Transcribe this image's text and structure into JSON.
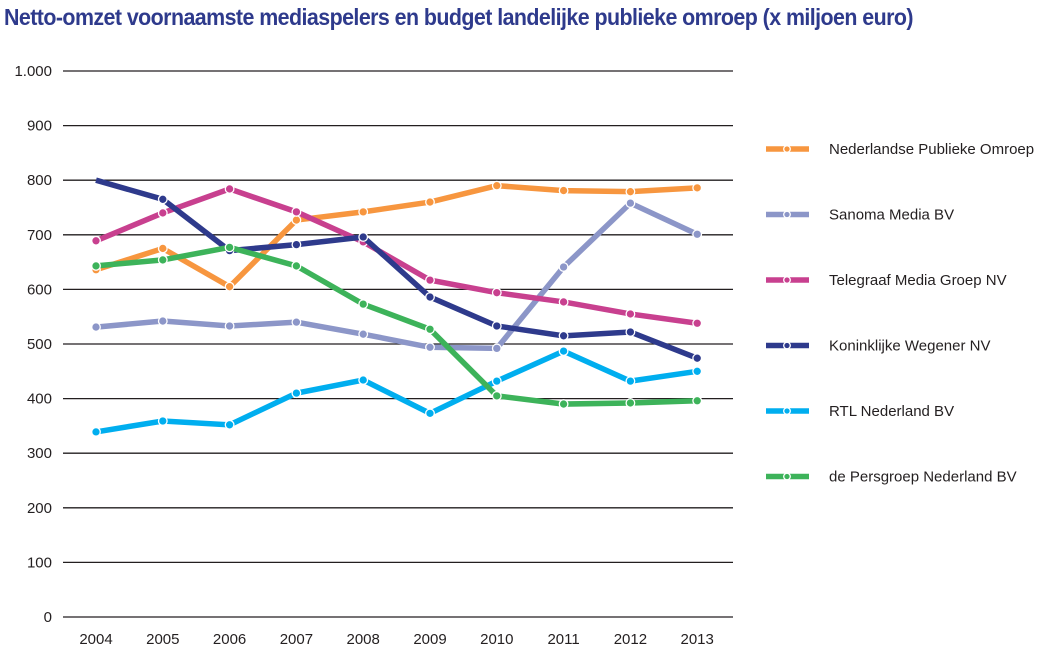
{
  "chart_data": {
    "type": "line",
    "title": "Netto-omzet voornaamste mediaspelers en budget landelijke publieke omroep (x miljoen euro)",
    "xlabel": "",
    "ylabel": "",
    "x": [
      "2004",
      "2005",
      "2006",
      "2007",
      "2008",
      "2009",
      "2010",
      "2011",
      "2012",
      "2013"
    ],
    "ylim": [
      0,
      1000
    ],
    "yticks": [
      0,
      100,
      200,
      300,
      400,
      500,
      600,
      700,
      800,
      900,
      1000
    ],
    "ytick_labels": [
      "0",
      "100",
      "200",
      "300",
      "400",
      "500",
      "600",
      "700",
      "800",
      "900",
      "1.000"
    ],
    "grid": true,
    "legend_position": "right",
    "series": [
      {
        "name": "Nederlandse Publieke Omroep",
        "color": "#F7963F",
        "values": [
          636,
          675,
          605,
          727,
          742,
          760,
          790,
          781,
          779,
          786
        ]
      },
      {
        "name": "Sanoma Media BV",
        "color": "#8C96C8",
        "values": [
          531,
          542,
          533,
          540,
          518,
          494,
          492,
          641,
          758,
          701
        ]
      },
      {
        "name": "Telegraaf Media Groep NV",
        "color": "#C8408F",
        "values": [
          689,
          740,
          784,
          742,
          687,
          617,
          594,
          577,
          555,
          538
        ]
      },
      {
        "name": "Koninklijke Wegener NV",
        "color": "#2E3A8C",
        "values": [
          800,
          765,
          671,
          682,
          696,
          586,
          533,
          515,
          522,
          474
        ]
      },
      {
        "name": "RTL Nederland BV",
        "color": "#00AEEF",
        "values": [
          339,
          359,
          352,
          410,
          434,
          373,
          432,
          487,
          432,
          450
        ]
      },
      {
        "name": "de Persgroep Nederland BV",
        "color": "#3DB35A",
        "values": [
          643,
          654,
          677,
          643,
          573,
          527,
          405,
          390,
          392,
          396
        ]
      }
    ]
  }
}
